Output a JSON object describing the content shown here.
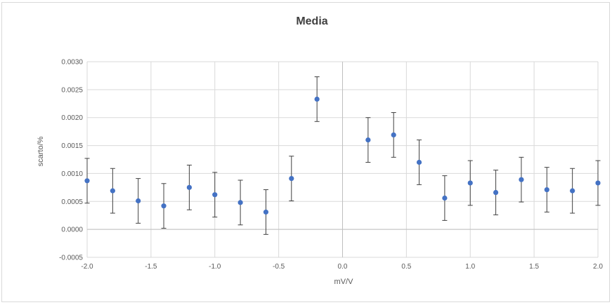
{
  "chart_data": {
    "type": "scatter",
    "title": "Media",
    "xlabel": "mV/V",
    "ylabel": "scarto/%",
    "xlim": [
      -2.0,
      2.0
    ],
    "ylim": [
      -0.0005,
      0.003
    ],
    "x_ticks": [
      -2.0,
      -1.5,
      -1.0,
      -0.5,
      0.0,
      0.5,
      1.0,
      1.5,
      2.0
    ],
    "x_tick_labels": [
      "-2.0",
      "-1.5",
      "-1.0",
      "-0.5",
      "0.0",
      "0.5",
      "1.0",
      "1.5",
      "2.0"
    ],
    "y_ticks": [
      -0.0005,
      0.0,
      0.0005,
      0.001,
      0.0015,
      0.002,
      0.0025,
      0.003
    ],
    "y_tick_labels": [
      "-0.0005",
      "0.0000",
      "0.0005",
      "0.0010",
      "0.0015",
      "0.0020",
      "0.0025",
      "0.0030"
    ],
    "grid": true,
    "legend": "none",
    "marker_color": "#4472c4",
    "errorbar_color": "#404040",
    "series": [
      {
        "x": [
          -2.0,
          -1.8,
          -1.6,
          -1.4,
          -1.2,
          -1.0,
          -0.8,
          -0.6,
          -0.4,
          -0.2,
          0.2,
          0.4,
          0.6,
          0.8,
          1.0,
          1.2,
          1.4,
          1.6,
          1.8,
          2.0
        ],
        "y": [
          0.00087,
          0.00069,
          0.00051,
          0.00042,
          0.00075,
          0.00062,
          0.00048,
          0.00031,
          0.00091,
          0.00233,
          0.0016,
          0.00169,
          0.0012,
          0.00056,
          0.00083,
          0.00066,
          0.00089,
          0.00071,
          0.00069,
          0.00083
        ],
        "error": 0.0004
      }
    ]
  }
}
